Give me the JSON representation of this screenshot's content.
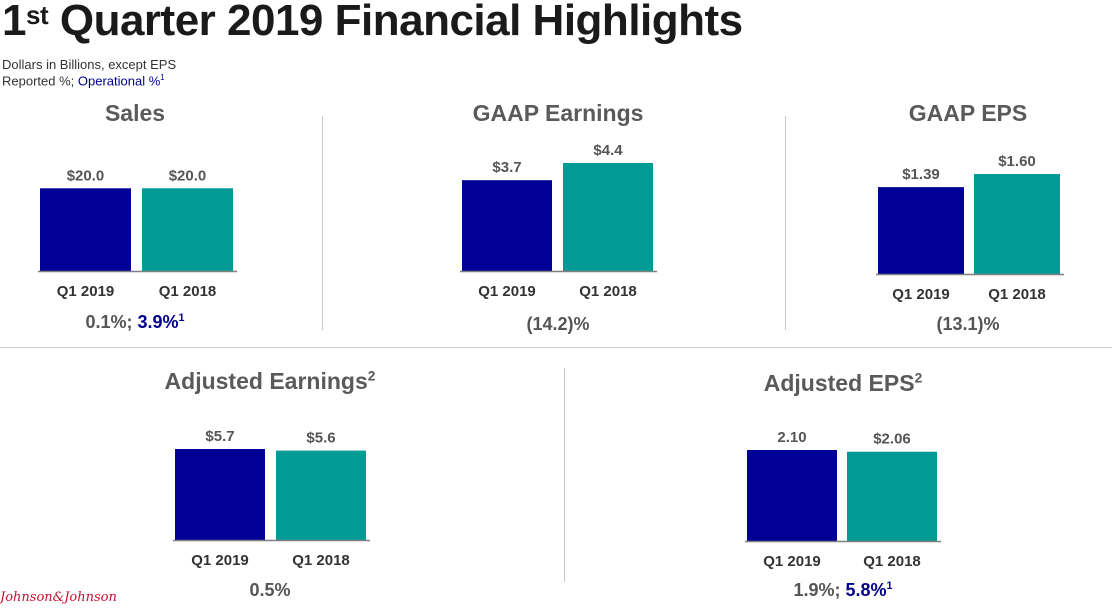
{
  "header": {
    "title_main": "Quarter 2019 Financial Highlights",
    "title_ordinal": "1",
    "title_ordinal_sup": "st",
    "units_note": "Dollars in Billions, except EPS",
    "reported_label": "Reported %; ",
    "operational_label": "Operational %",
    "operational_footnote": "1"
  },
  "colors": {
    "current": "#000096",
    "prior": "#009b95",
    "axis": "#7f7f7f"
  },
  "chart_data": [
    {
      "type": "bar",
      "title": "Sales",
      "title_footnote": "",
      "categories": [
        "Q1 2019",
        "Q1 2018"
      ],
      "values": [
        20.0,
        20.0
      ],
      "labels": [
        "$20.0",
        "$20.0"
      ],
      "ylim": [
        0,
        22
      ],
      "note_reported": "0.1%; ",
      "note_operational": "3.9%",
      "note_footnote": "1"
    },
    {
      "type": "bar",
      "title": "GAAP Earnings",
      "title_footnote": "",
      "categories": [
        "Q1 2019",
        "Q1 2018"
      ],
      "values": [
        3.7,
        4.4
      ],
      "labels": [
        "$3.7",
        "$4.4"
      ],
      "ylim": [
        0,
        4.4
      ],
      "note_reported": "(14.2)%",
      "note_operational": "",
      "note_footnote": ""
    },
    {
      "type": "bar",
      "title": "GAAP EPS",
      "title_footnote": "",
      "categories": [
        "Q1 2019",
        "Q1 2018"
      ],
      "values": [
        1.39,
        1.6
      ],
      "labels": [
        "$1.39",
        "$1.60"
      ],
      "ylim": [
        0,
        1.6
      ],
      "note_reported": "(13.1)%",
      "note_operational": "",
      "note_footnote": ""
    },
    {
      "type": "bar",
      "title": "Adjusted Earnings",
      "title_footnote": "2",
      "categories": [
        "Q1 2019",
        "Q1 2018"
      ],
      "values": [
        5.7,
        5.6
      ],
      "labels": [
        "$5.7",
        "$5.6"
      ],
      "ylim": [
        0,
        5.7
      ],
      "note_reported": "0.5%",
      "note_operational": "",
      "note_footnote": ""
    },
    {
      "type": "bar",
      "title": "Adjusted EPS",
      "title_footnote": "2",
      "categories": [
        "Q1 2019",
        "Q1 2018"
      ],
      "values": [
        2.1,
        2.06
      ],
      "labels": [
        "2.10",
        "$2.06"
      ],
      "ylim": [
        0,
        2.1
      ],
      "note_reported": "1.9%; ",
      "note_operational": "5.8%",
      "note_footnote": "1"
    }
  ],
  "footer": {
    "logo_text": "Johnson&Johnson"
  }
}
